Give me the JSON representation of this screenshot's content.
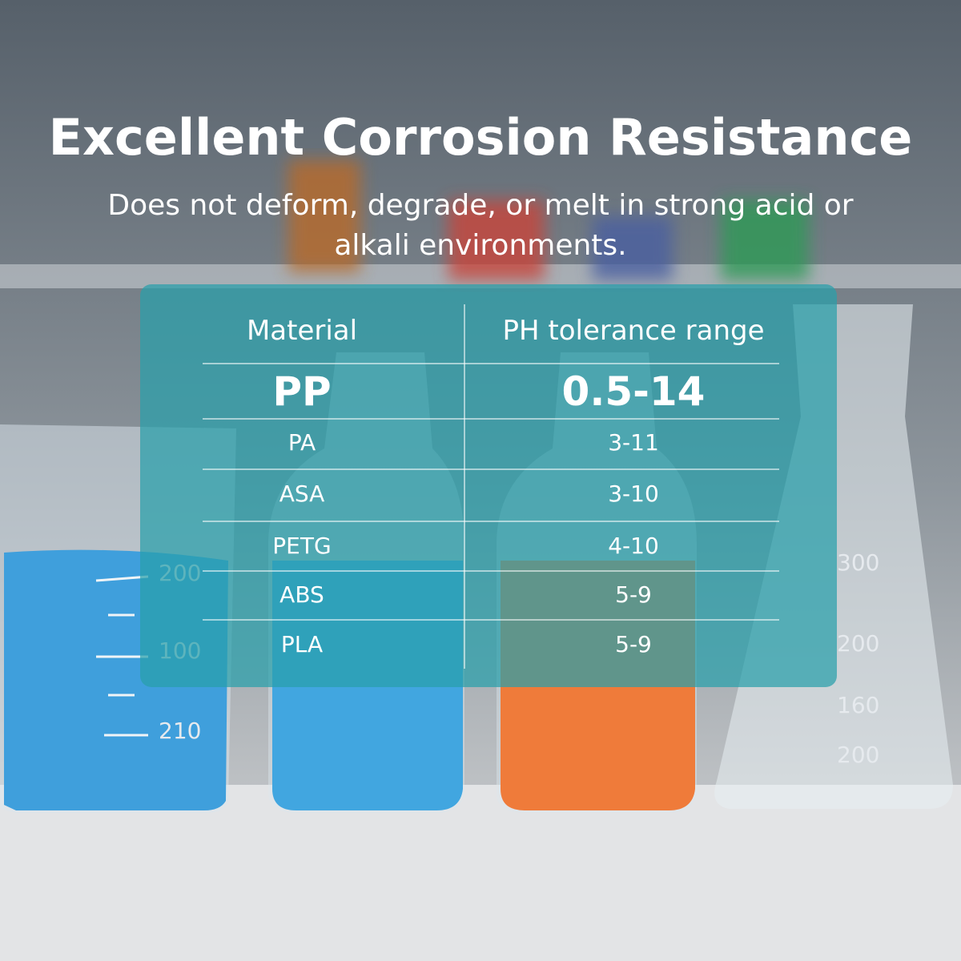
{
  "header": {
    "title": "Excellent Corrosion Resistance",
    "subtitle": "Does not deform, degrade, or melt in strong acid or alkali environments."
  },
  "table": {
    "columns": [
      "Material",
      "PH tolerance range"
    ],
    "rows": [
      [
        "PP",
        "0.5-14"
      ],
      [
        "PA",
        "3-11"
      ],
      [
        "ASA",
        "3-10"
      ],
      [
        "PETG",
        "4-10"
      ],
      [
        "ABS",
        "5-9"
      ],
      [
        "PLA",
        "5-9"
      ]
    ]
  },
  "background": {
    "beaker_marks": [
      "200",
      "100",
      "210"
    ],
    "flask_marks": [
      "300",
      "200",
      "160",
      "200"
    ]
  }
}
